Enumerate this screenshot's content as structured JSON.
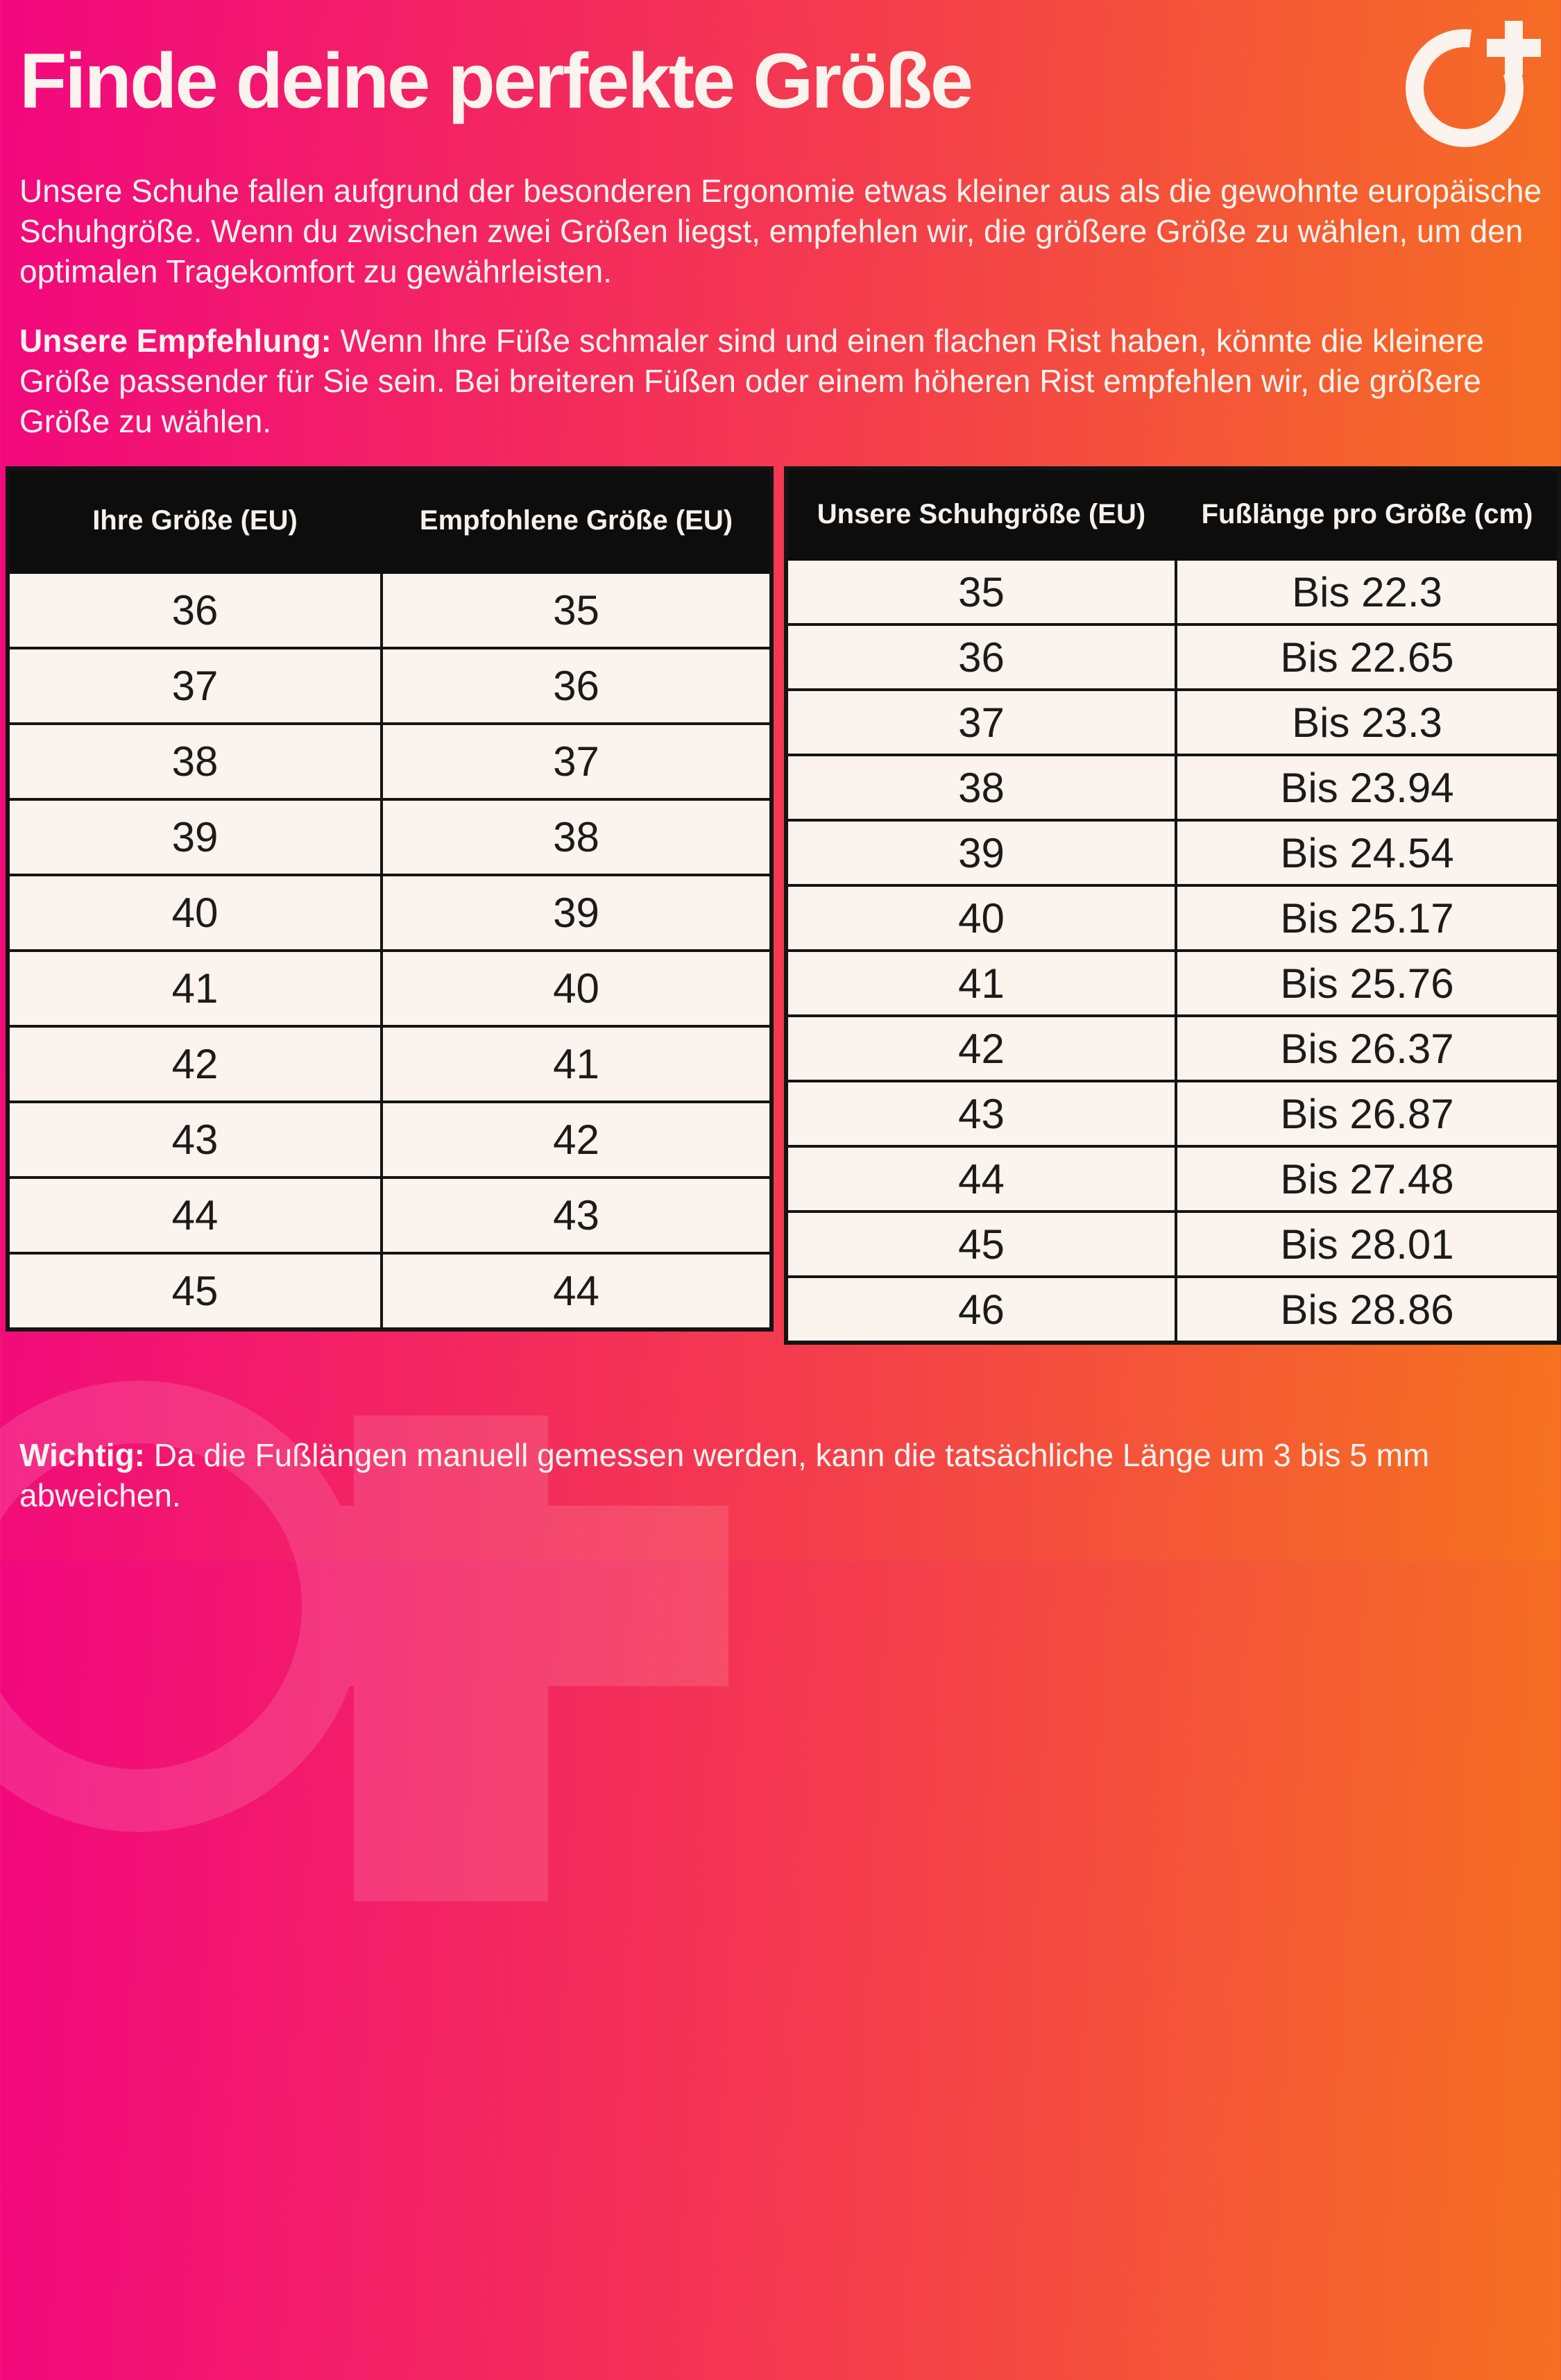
{
  "header": {
    "title": "Finde deine perfekte Größe",
    "logo": "circle-plus-logo"
  },
  "paragraphs": {
    "intro": "Unsere Schuhe fallen aufgrund der besonderen Ergonomie etwas kleiner aus als die gewohnte europäische Schuhgröße. Wenn du zwischen zwei Größen liegst, empfehlen wir, die größere Größe zu wählen, um den optimalen Tragekomfort zu gewährleisten.",
    "recommendation_label": "Unsere Empfehlung:",
    "recommendation_text": " Wenn Ihre Füße schmaler sind und einen flachen Rist haben, könnte die kleinere Größe passender für Sie sein. Bei breiteren Füßen oder einem höheren Rist empfehlen wir, die größere Größe zu wählen.",
    "note_label": "Wichtig:",
    "note_text": " Da die Fußlängen manuell gemessen werden, kann die tatsächliche Länge um 3 bis 5 mm abweichen."
  },
  "size_table": {
    "headers": [
      "Ihre Größe (EU)",
      "Empfohlene Größe (EU)"
    ],
    "rows": [
      [
        "36",
        "35"
      ],
      [
        "37",
        "36"
      ],
      [
        "38",
        "37"
      ],
      [
        "39",
        "38"
      ],
      [
        "40",
        "39"
      ],
      [
        "41",
        "40"
      ],
      [
        "42",
        "41"
      ],
      [
        "43",
        "42"
      ],
      [
        "44",
        "43"
      ],
      [
        "45",
        "44"
      ]
    ]
  },
  "length_table": {
    "headers": [
      "Unsere Schuhgröße (EU)",
      "Fußlänge pro Größe (cm)"
    ],
    "rows": [
      [
        "35",
        "Bis 22.3"
      ],
      [
        "36",
        "Bis 22.65"
      ],
      [
        "37",
        "Bis 23.3"
      ],
      [
        "38",
        "Bis 23.94"
      ],
      [
        "39",
        "Bis 24.54"
      ],
      [
        "40",
        "Bis 25.17"
      ],
      [
        "41",
        "Bis 25.76"
      ],
      [
        "42",
        "Bis 26.37"
      ],
      [
        "43",
        "Bis 26.87"
      ],
      [
        "44",
        "Bis 27.48"
      ],
      [
        "45",
        "Bis 28.01"
      ],
      [
        "46",
        "Bis 28.86"
      ]
    ]
  },
  "colors": {
    "gradient_start": "#F2077E",
    "gradient_mid": "#F43B4E",
    "gradient_end": "#F5731F",
    "table_bg": "#FBF3ED",
    "table_header_bg": "#0D0D0D",
    "text_light": "#FBF3ED",
    "text_dark": "#1B1B1B"
  }
}
